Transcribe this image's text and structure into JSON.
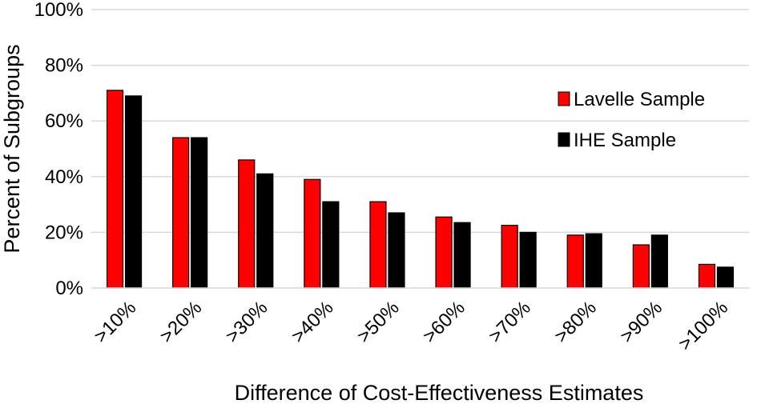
{
  "chart_data": {
    "type": "bar",
    "title": "",
    "xlabel": "Difference of Cost-Effectiveness Estimates",
    "ylabel": "Percent of Subgroups",
    "categories": [
      ">10%",
      ">20%",
      ">30%",
      ">40%",
      ">50%",
      ">60%",
      ">70%",
      ">80%",
      ">90%",
      ">100%"
    ],
    "series": [
      {
        "name": "Lavelle Sample",
        "color": "#ff0000",
        "values": [
          71,
          54,
          46,
          39,
          31,
          25.5,
          22.5,
          19,
          15.5,
          8.5
        ]
      },
      {
        "name": "IHE Sample",
        "color": "#000000",
        "values": [
          69,
          54,
          41,
          31,
          27,
          23.5,
          20,
          19.5,
          19,
          7.5
        ]
      }
    ],
    "y_ticks": [
      "0%",
      "20%",
      "40%",
      "60%",
      "80%",
      "100%"
    ],
    "ylim": [
      0,
      100
    ],
    "grid": true,
    "gridline_color": "#d9d9d9",
    "legend_position": "top-right"
  }
}
